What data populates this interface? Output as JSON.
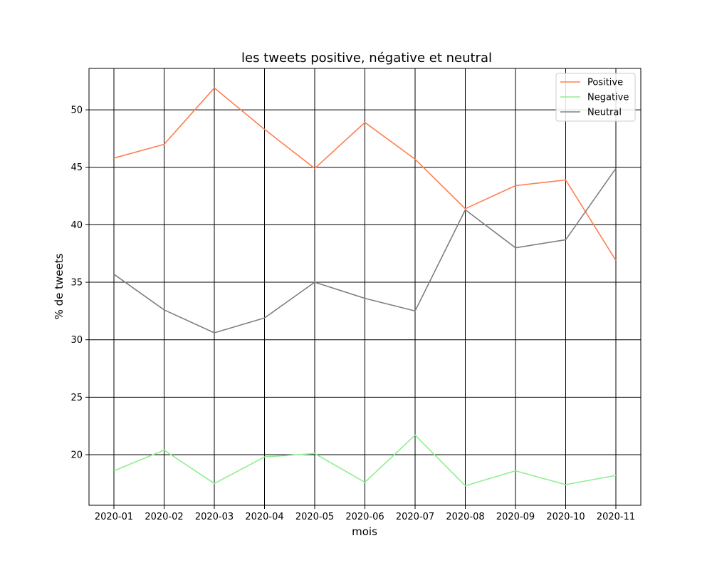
{
  "chart_data": {
    "type": "line",
    "title": "les tweets positive, négative et neutral",
    "xlabel": "mois",
    "ylabel": "% de tweets",
    "categories": [
      "2020-01",
      "2020-02",
      "2020-03",
      "2020-04",
      "2020-05",
      "2020-06",
      "2020-07",
      "2020-08",
      "2020-09",
      "2020-10",
      "2020-11"
    ],
    "ylim": [
      15.6,
      53.6
    ],
    "yticks": [
      20,
      25,
      30,
      35,
      40,
      45,
      50
    ],
    "grid": true,
    "legend_position": "top-right",
    "series": [
      {
        "name": "Positive",
        "color": "#ff7f50",
        "values": [
          45.8,
          47.0,
          51.9,
          48.3,
          44.9,
          48.9,
          45.7,
          41.4,
          43.4,
          43.9,
          36.9
        ]
      },
      {
        "name": "Negative",
        "color": "#90ee90",
        "values": [
          18.6,
          20.4,
          17.5,
          19.8,
          20.1,
          17.6,
          21.7,
          17.3,
          18.6,
          17.4,
          18.2
        ]
      },
      {
        "name": "Neutral",
        "color": "#808080",
        "values": [
          35.7,
          32.6,
          30.6,
          31.9,
          35.0,
          33.6,
          32.5,
          41.3,
          38.0,
          38.7,
          44.9
        ]
      }
    ]
  }
}
